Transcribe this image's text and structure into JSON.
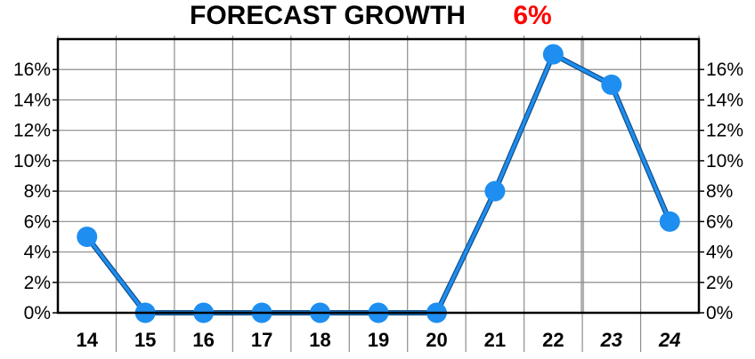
{
  "chart_data": {
    "type": "line",
    "title": "FORECAST GROWTH",
    "title_value": "6%",
    "title_value_color": "#ff0000",
    "categories": [
      "14",
      "15",
      "16",
      "17",
      "18",
      "19",
      "20",
      "21",
      "22",
      "23",
      "24"
    ],
    "forecast_categories": [
      "23",
      "24"
    ],
    "series": [
      {
        "values": [
          5,
          0,
          0,
          0,
          0,
          0,
          0,
          8,
          17,
          15,
          6
        ],
        "color": "#1e8ef0"
      }
    ],
    "y_ticks": [
      "0%",
      "2%",
      "4%",
      "6%",
      "8%",
      "10%",
      "12%",
      "14%",
      "16%"
    ],
    "ylim": [
      0,
      18
    ],
    "y_axis_sides": [
      "left",
      "right"
    ],
    "grid": true,
    "xlabel": "",
    "ylabel": ""
  }
}
